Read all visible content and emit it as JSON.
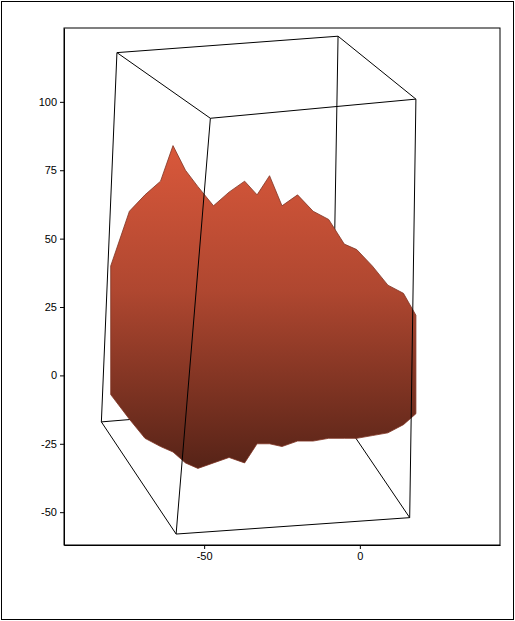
{
  "chart_data": {
    "type": "area",
    "xlim": [
      -95,
      45
    ],
    "ylim": [
      -62,
      127
    ],
    "xticks": [
      -50,
      0
    ],
    "yticks": [
      -50,
      -25,
      0,
      25,
      50,
      75,
      100
    ],
    "grid": false,
    "series": [
      {
        "type": "line",
        "color": "#000000",
        "x": [
          -7,
          -9,
          null,
          -83,
          -9,
          16
        ],
        "values": [
          124,
          -10,
          null,
          -17,
          -10,
          -52
        ]
      },
      {
        "type": "area",
        "color": "#d9583b",
        "x": [
          -80,
          -74,
          -69,
          -64,
          -60,
          -56,
          -52,
          -47,
          -42,
          -37,
          -33,
          -29,
          -25,
          -20,
          -15,
          -10,
          -5,
          -1,
          4,
          9,
          14,
          18
        ],
        "values": [
          40,
          60,
          66,
          71,
          84,
          75,
          69,
          62,
          67,
          71,
          66,
          73,
          62,
          66,
          60,
          57,
          48,
          46,
          40,
          33,
          30,
          22
        ],
        "lower": [
          -7,
          -16,
          -23,
          -26,
          -28,
          -32,
          -34,
          -32,
          -30,
          -32,
          -25,
          -25,
          -26,
          -24,
          -24,
          -23,
          -23,
          -23,
          -22,
          -21,
          -18,
          -14
        ]
      },
      {
        "type": "line",
        "color": "#000000",
        "x": [
          -78,
          -7,
          18,
          -48,
          -78,
          null,
          -83,
          -59,
          16,
          null,
          -78,
          -83,
          null,
          -48,
          -59,
          null,
          18,
          16
        ],
        "values": [
          118,
          124,
          101,
          94,
          118,
          null,
          -17,
          -58,
          -52,
          null,
          118,
          -17,
          null,
          94,
          -58,
          null,
          101,
          -52
        ]
      }
    ]
  }
}
